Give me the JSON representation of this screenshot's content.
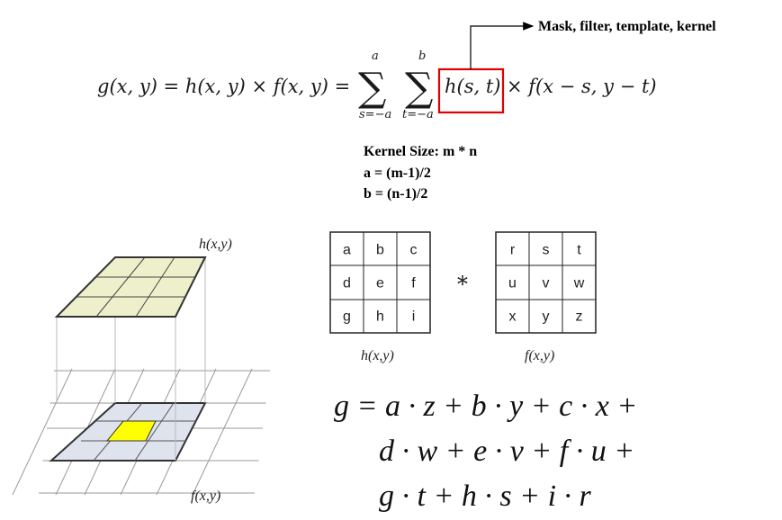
{
  "top_equation": {
    "lhs": "g(x, y) = h(x, y) × f(x, y) =",
    "sum1_upper": "a",
    "sum1_lower": "s=−a",
    "sum2_upper": "b",
    "sum2_lower": "t=−a",
    "kernel_term": "h(s, t)",
    "rest": "× f(x − s, y − t)",
    "sigma": "∑"
  },
  "annotation": {
    "arrow_label": "Mask, filter, template, kernel",
    "highlight_color": "#e00000"
  },
  "kernel_size_notes": {
    "line1": "Kernel  Size: m  *  n",
    "line2": "a = (m-1)/2",
    "line3": "b = (n-1)/2"
  },
  "diagram_3d": {
    "top_label": "h(x,y)",
    "bottom_label": "f(x,y)",
    "top_plane_color": "#eef0cc",
    "base_patch_color": "#dfe3ee",
    "center_cell_color": "#ffff00"
  },
  "matrices": {
    "h": {
      "cells": [
        [
          "a",
          "b",
          "c"
        ],
        [
          "d",
          "e",
          "f"
        ],
        [
          "g",
          "h",
          "i"
        ]
      ],
      "label": "h(x,y)"
    },
    "operator": "*",
    "f": {
      "cells": [
        [
          "r",
          "s",
          "t"
        ],
        [
          "u",
          "v",
          "w"
        ],
        [
          "x",
          "y",
          "z"
        ]
      ],
      "label": "f(x,y)"
    }
  },
  "expansion": {
    "line1": "g = a · z + b · y + c · x +",
    "line2": "d · w + e · v + f · u +",
    "line3": "g · t + h · s + i · r"
  }
}
